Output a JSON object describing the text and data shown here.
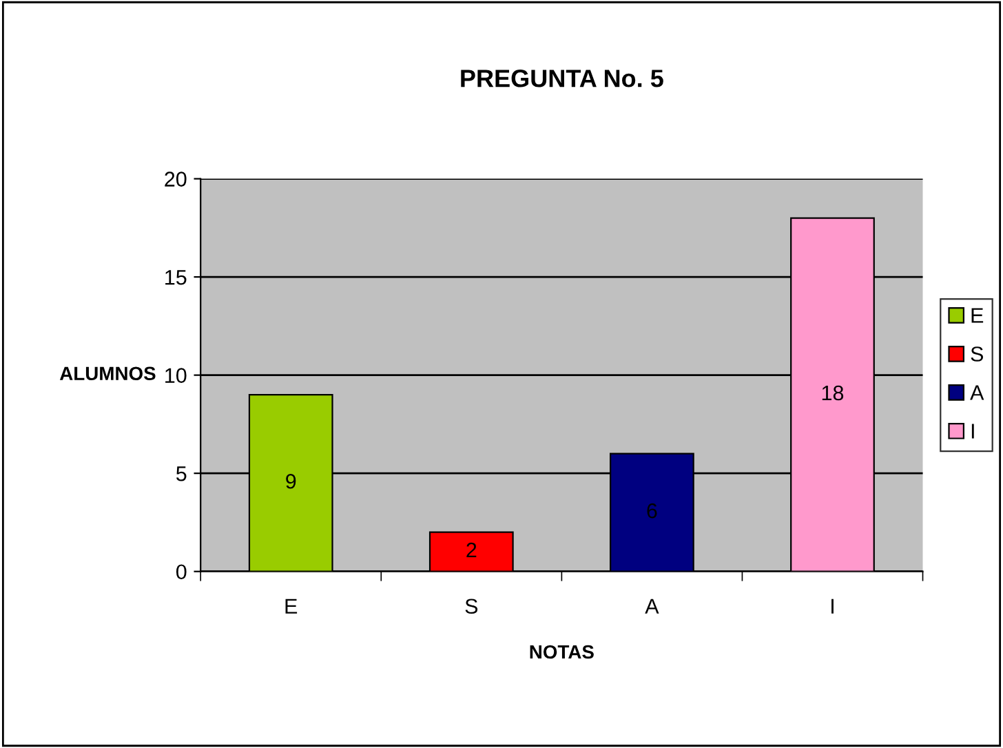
{
  "chart_data": {
    "type": "bar",
    "title": "PREGUNTA No. 5",
    "xlabel": "NOTAS",
    "ylabel": "ALUMNOS",
    "categories": [
      "E",
      "S",
      "A",
      "I"
    ],
    "series": [
      {
        "name": "E",
        "color": "#99cc00",
        "values": [
          9,
          null,
          null,
          null
        ]
      },
      {
        "name": "S",
        "color": "#ff0000",
        "values": [
          null,
          2,
          null,
          null
        ]
      },
      {
        "name": "A",
        "color": "#000080",
        "values": [
          null,
          null,
          6,
          null
        ]
      },
      {
        "name": "I",
        "color": "#ff99cc",
        "values": [
          null,
          null,
          null,
          18
        ]
      }
    ],
    "ylim": [
      0,
      20
    ],
    "yticks": [
      0,
      5,
      10,
      15,
      20
    ],
    "grid": "y",
    "legend": "right",
    "data_labels": true
  }
}
